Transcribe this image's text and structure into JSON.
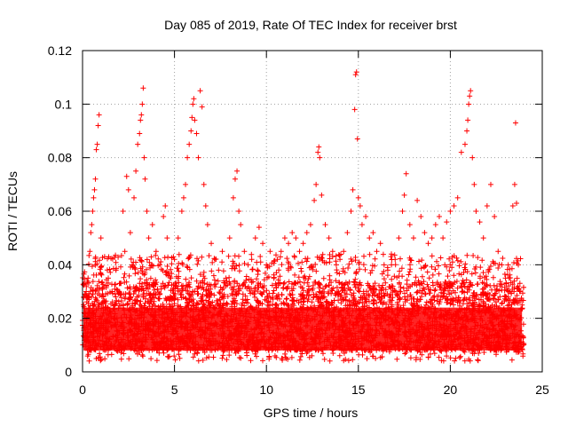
{
  "chart_data": {
    "type": "scatter",
    "title": "Day 085 of 2019, Rate Of TEC Index for receiver brst",
    "xlabel": "GPS time / hours",
    "ylabel": "ROTI / TECUs",
    "xlim": [
      0,
      25
    ],
    "ylim": [
      0,
      0.12
    ],
    "x_ticks": [
      0,
      5,
      10,
      15,
      20,
      25
    ],
    "y_ticks": [
      0,
      0.02,
      0.04,
      0.06,
      0.08,
      0.1,
      0.12
    ],
    "x_tick_labels": [
      "0",
      "5",
      "10",
      "15",
      "20",
      "25"
    ],
    "y_tick_labels": [
      "0",
      "0.02",
      "0.04",
      "0.06",
      "0.08",
      "0.1",
      "0.12"
    ],
    "grid": true,
    "marker": "+",
    "marker_color": "#ff0000",
    "background_band": {
      "x_start": 0,
      "x_end": 24,
      "y_low": 0.008,
      "y_high": 0.024,
      "note": "dense red cloud of ROTI samples"
    },
    "series": [
      {
        "name": "ROTI",
        "points": [
          [
            0.1,
            0.022
          ],
          [
            0.2,
            0.03
          ],
          [
            0.3,
            0.035
          ],
          [
            0.4,
            0.045
          ],
          [
            0.45,
            0.052
          ],
          [
            0.5,
            0.055
          ],
          [
            0.55,
            0.06
          ],
          [
            0.6,
            0.065
          ],
          [
            0.65,
            0.068
          ],
          [
            0.7,
            0.072
          ],
          [
            0.75,
            0.083
          ],
          [
            0.8,
            0.085
          ],
          [
            0.85,
            0.092
          ],
          [
            0.9,
            0.096
          ],
          [
            1.0,
            0.05
          ],
          [
            1.2,
            0.043
          ],
          [
            1.4,
            0.035
          ],
          [
            1.6,
            0.03
          ],
          [
            1.8,
            0.028
          ],
          [
            2.0,
            0.033
          ],
          [
            2.2,
            0.06
          ],
          [
            2.3,
            0.045
          ],
          [
            2.4,
            0.073
          ],
          [
            2.5,
            0.068
          ],
          [
            2.6,
            0.052
          ],
          [
            2.7,
            0.04
          ],
          [
            2.8,
            0.065
          ],
          [
            2.9,
            0.075
          ],
          [
            3.0,
            0.085
          ],
          [
            3.1,
            0.089
          ],
          [
            3.15,
            0.094
          ],
          [
            3.2,
            0.096
          ],
          [
            3.25,
            0.1
          ],
          [
            3.3,
            0.106
          ],
          [
            3.35,
            0.08
          ],
          [
            3.4,
            0.072
          ],
          [
            3.5,
            0.06
          ],
          [
            3.6,
            0.05
          ],
          [
            3.8,
            0.055
          ],
          [
            4.0,
            0.045
          ],
          [
            4.2,
            0.04
          ],
          [
            4.4,
            0.058
          ],
          [
            4.5,
            0.062
          ],
          [
            4.6,
            0.05
          ],
          [
            4.8,
            0.035
          ],
          [
            5.0,
            0.042
          ],
          [
            5.2,
            0.05
          ],
          [
            5.4,
            0.06
          ],
          [
            5.5,
            0.065
          ],
          [
            5.6,
            0.07
          ],
          [
            5.7,
            0.08
          ],
          [
            5.8,
            0.085
          ],
          [
            5.9,
            0.09
          ],
          [
            5.95,
            0.095
          ],
          [
            6.0,
            0.1
          ],
          [
            6.05,
            0.102
          ],
          [
            6.1,
            0.094
          ],
          [
            6.2,
            0.089
          ],
          [
            6.3,
            0.08
          ],
          [
            6.4,
            0.105
          ],
          [
            6.5,
            0.099
          ],
          [
            6.6,
            0.07
          ],
          [
            6.7,
            0.062
          ],
          [
            6.8,
            0.055
          ],
          [
            7.0,
            0.048
          ],
          [
            7.2,
            0.042
          ],
          [
            7.4,
            0.038
          ],
          [
            7.6,
            0.045
          ],
          [
            7.8,
            0.035
          ],
          [
            8.0,
            0.05
          ],
          [
            8.2,
            0.065
          ],
          [
            8.3,
            0.072
          ],
          [
            8.4,
            0.075
          ],
          [
            8.5,
            0.06
          ],
          [
            8.6,
            0.055
          ],
          [
            8.8,
            0.045
          ],
          [
            9.0,
            0.04
          ],
          [
            9.2,
            0.042
          ],
          [
            9.4,
            0.05
          ],
          [
            9.6,
            0.054
          ],
          [
            9.8,
            0.048
          ],
          [
            10.0,
            0.04
          ],
          [
            10.2,
            0.045
          ],
          [
            10.4,
            0.035
          ],
          [
            10.6,
            0.042
          ],
          [
            10.8,
            0.045
          ],
          [
            11.0,
            0.05
          ],
          [
            11.2,
            0.048
          ],
          [
            11.4,
            0.052
          ],
          [
            11.6,
            0.05
          ],
          [
            11.8,
            0.045
          ],
          [
            12.0,
            0.048
          ],
          [
            12.2,
            0.052
          ],
          [
            12.4,
            0.055
          ],
          [
            12.6,
            0.064
          ],
          [
            12.7,
            0.07
          ],
          [
            12.8,
            0.082
          ],
          [
            12.85,
            0.084
          ],
          [
            12.9,
            0.08
          ],
          [
            13.0,
            0.066
          ],
          [
            13.2,
            0.055
          ],
          [
            13.4,
            0.05
          ],
          [
            13.6,
            0.045
          ],
          [
            13.8,
            0.04
          ],
          [
            14.0,
            0.042
          ],
          [
            14.2,
            0.045
          ],
          [
            14.4,
            0.052
          ],
          [
            14.6,
            0.06
          ],
          [
            14.7,
            0.068
          ],
          [
            14.8,
            0.098
          ],
          [
            14.85,
            0.111
          ],
          [
            14.9,
            0.112
          ],
          [
            14.95,
            0.087
          ],
          [
            15.0,
            0.065
          ],
          [
            15.1,
            0.062
          ],
          [
            15.2,
            0.055
          ],
          [
            15.4,
            0.058
          ],
          [
            15.6,
            0.05
          ],
          [
            15.8,
            0.052
          ],
          [
            16.0,
            0.045
          ],
          [
            16.2,
            0.048
          ],
          [
            16.4,
            0.04
          ],
          [
            16.6,
            0.038
          ],
          [
            16.8,
            0.04
          ],
          [
            17.0,
            0.042
          ],
          [
            17.2,
            0.05
          ],
          [
            17.4,
            0.06
          ],
          [
            17.5,
            0.066
          ],
          [
            17.6,
            0.074
          ],
          [
            17.8,
            0.055
          ],
          [
            18.0,
            0.05
          ],
          [
            18.2,
            0.064
          ],
          [
            18.4,
            0.058
          ],
          [
            18.6,
            0.052
          ],
          [
            18.8,
            0.048
          ],
          [
            19.0,
            0.05
          ],
          [
            19.2,
            0.055
          ],
          [
            19.4,
            0.058
          ],
          [
            19.6,
            0.05
          ],
          [
            19.8,
            0.056
          ],
          [
            20.0,
            0.06
          ],
          [
            20.2,
            0.062
          ],
          [
            20.4,
            0.065
          ],
          [
            20.6,
            0.082
          ],
          [
            20.8,
            0.085
          ],
          [
            20.9,
            0.09
          ],
          [
            20.95,
            0.094
          ],
          [
            21.0,
            0.1
          ],
          [
            21.05,
            0.103
          ],
          [
            21.1,
            0.105
          ],
          [
            21.2,
            0.08
          ],
          [
            21.3,
            0.07
          ],
          [
            21.4,
            0.06
          ],
          [
            21.6,
            0.056
          ],
          [
            21.8,
            0.05
          ],
          [
            22.0,
            0.062
          ],
          [
            22.2,
            0.07
          ],
          [
            22.4,
            0.058
          ],
          [
            22.6,
            0.045
          ],
          [
            22.8,
            0.04
          ],
          [
            23.0,
            0.035
          ],
          [
            23.2,
            0.035
          ],
          [
            23.4,
            0.062
          ],
          [
            23.5,
            0.07
          ],
          [
            23.55,
            0.093
          ],
          [
            23.6,
            0.063
          ],
          [
            23.7,
            0.04
          ],
          [
            23.8,
            0.03
          ],
          [
            23.9,
            0.025
          ]
        ]
      }
    ]
  }
}
